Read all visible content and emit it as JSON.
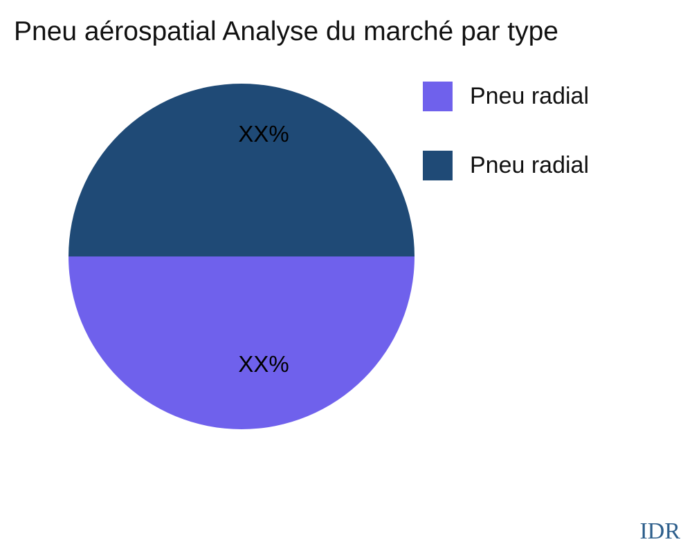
{
  "page": {
    "watermark": "IDR"
  },
  "colors": {
    "background": "#FFFFFF",
    "title_text": "#111111",
    "label_text": "#000000",
    "watermark_text": "#2E5F8C",
    "slice_top": "#1F4A76",
    "slice_bottom": "#6F61EC"
  },
  "chart_data": {
    "type": "pie",
    "title": "Pneu aérospatial Analyse du marché par type",
    "slices": [
      {
        "label": "Pneu radial",
        "color": "#6F61EC",
        "value_pct": 50,
        "value_label": "XX%",
        "position": "bottom"
      },
      {
        "label": "Pneu radial",
        "color": "#1F4A76",
        "value_pct": 50,
        "value_label": "XX%",
        "position": "top"
      }
    ],
    "legend_position": "upper right",
    "data_labels_masked": true
  }
}
